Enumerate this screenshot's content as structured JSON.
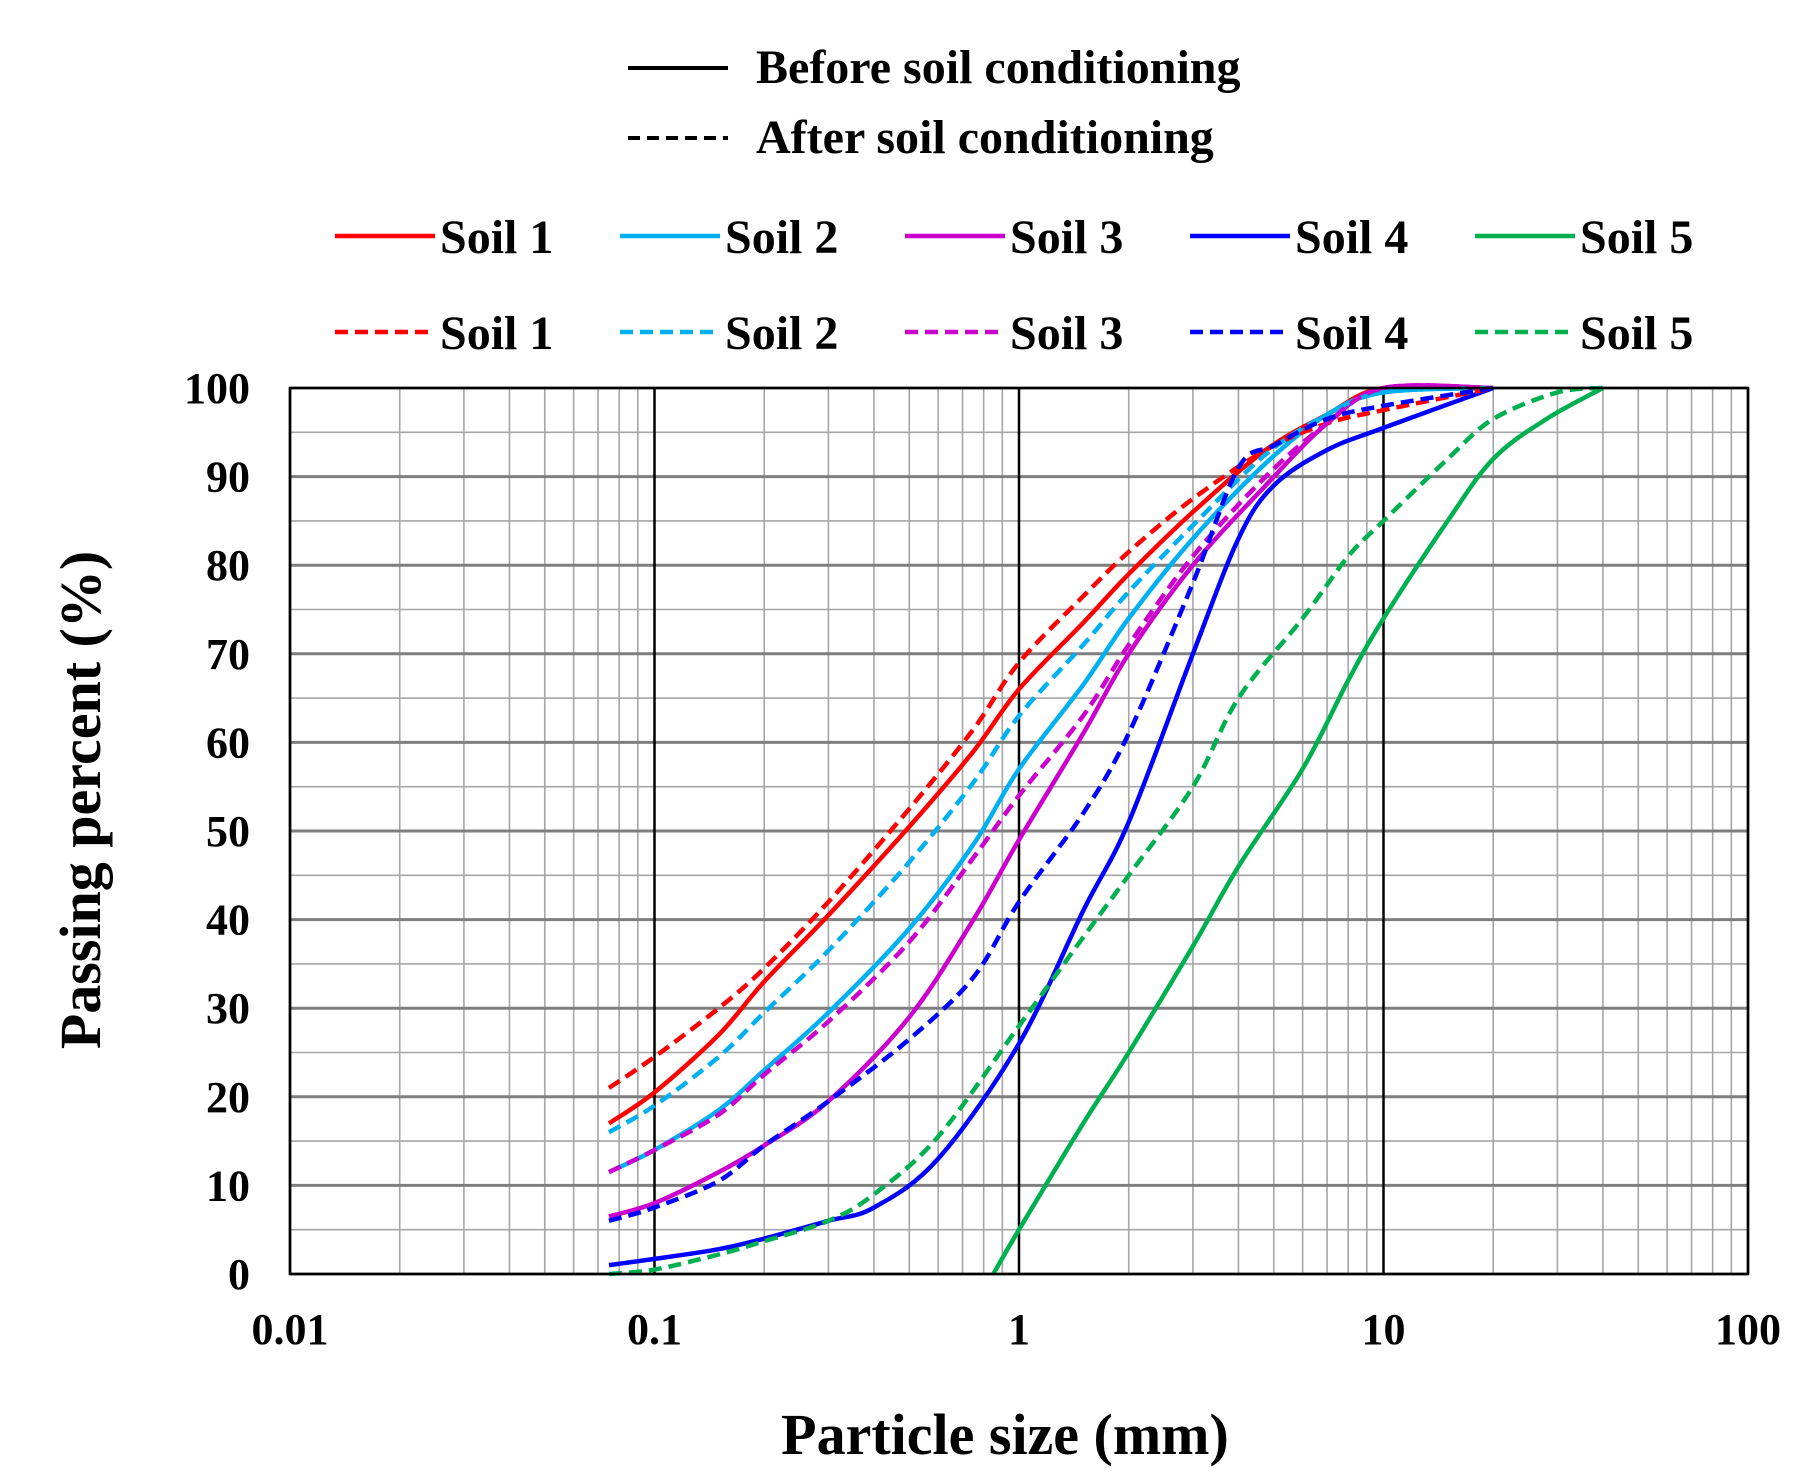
{
  "chart_data": {
    "type": "line",
    "x_scale": "log",
    "xlabel": "Particle size (mm)",
    "ylabel": "Passing  percent (%)",
    "xlim": [
      0.01,
      100
    ],
    "ylim": [
      0,
      100
    ],
    "x_ticks": [
      0.01,
      0.1,
      1,
      10,
      100
    ],
    "x_tick_labels": [
      "0.01",
      "0.1",
      "1",
      "10",
      "100"
    ],
    "y_ticks": [
      0,
      10,
      20,
      30,
      40,
      50,
      60,
      70,
      80,
      90,
      100
    ],
    "y_tick_labels": [
      "0",
      "10",
      "20",
      "30",
      "40",
      "50",
      "60",
      "70",
      "80",
      "90",
      "100"
    ],
    "grid": true,
    "style_legend": [
      {
        "label": "Before soil conditioning",
        "dash": "solid"
      },
      {
        "label": "After soil conditioning",
        "dash": "dashed"
      }
    ],
    "series": [
      {
        "name": "Soil 1",
        "condition": "before",
        "color": "#FF0000",
        "dash": "solid",
        "points": [
          [
            0.075,
            17
          ],
          [
            0.1,
            20.5
          ],
          [
            0.15,
            27
          ],
          [
            0.2,
            33
          ],
          [
            0.3,
            40.5
          ],
          [
            0.5,
            50.5
          ],
          [
            0.75,
            59
          ],
          [
            1,
            66
          ],
          [
            1.5,
            73.5
          ],
          [
            2,
            79
          ],
          [
            3,
            86
          ],
          [
            4.75,
            93
          ],
          [
            7,
            97
          ],
          [
            10,
            100
          ],
          [
            20,
            100
          ]
        ]
      },
      {
        "name": "Soil 2",
        "condition": "before",
        "color": "#00B0F0",
        "dash": "solid",
        "points": [
          [
            0.075,
            11.5
          ],
          [
            0.1,
            14
          ],
          [
            0.15,
            18.5
          ],
          [
            0.2,
            23
          ],
          [
            0.3,
            29.5
          ],
          [
            0.5,
            39
          ],
          [
            0.75,
            48.5
          ],
          [
            1,
            57
          ],
          [
            1.5,
            66.5
          ],
          [
            2,
            74
          ],
          [
            3,
            83
          ],
          [
            4.75,
            91.5
          ],
          [
            7,
            97
          ],
          [
            10,
            99.5
          ],
          [
            20,
            100
          ]
        ]
      },
      {
        "name": "Soil 3",
        "condition": "before",
        "color": "#CC00CC",
        "dash": "solid",
        "points": [
          [
            0.075,
            6.5
          ],
          [
            0.1,
            8
          ],
          [
            0.15,
            11.5
          ],
          [
            0.2,
            14.5
          ],
          [
            0.3,
            19.5
          ],
          [
            0.5,
            29
          ],
          [
            0.75,
            40
          ],
          [
            1,
            49
          ],
          [
            1.5,
            61
          ],
          [
            2,
            70
          ],
          [
            3,
            80
          ],
          [
            4.75,
            89
          ],
          [
            7,
            96
          ],
          [
            10,
            100
          ],
          [
            20,
            100
          ]
        ]
      },
      {
        "name": "Soil 4",
        "condition": "before",
        "color": "#0000FF",
        "dash": "solid",
        "points": [
          [
            0.075,
            1
          ],
          [
            0.1,
            1.7
          ],
          [
            0.15,
            2.8
          ],
          [
            0.2,
            4
          ],
          [
            0.3,
            6
          ],
          [
            0.4,
            7.5
          ],
          [
            0.6,
            13
          ],
          [
            1,
            26
          ],
          [
            1.5,
            41
          ],
          [
            2,
            51
          ],
          [
            3,
            70
          ],
          [
            4,
            83
          ],
          [
            5,
            89
          ],
          [
            7,
            93
          ],
          [
            10,
            95.5
          ],
          [
            20,
            100
          ]
        ]
      },
      {
        "name": "Soil 5",
        "condition": "before",
        "color": "#00B050",
        "dash": "solid",
        "points": [
          [
            0.85,
            0
          ],
          [
            1,
            5
          ],
          [
            1.5,
            17
          ],
          [
            2,
            25
          ],
          [
            3,
            37
          ],
          [
            4,
            46
          ],
          [
            6,
            57
          ],
          [
            8,
            67
          ],
          [
            10,
            74
          ],
          [
            15,
            85
          ],
          [
            20,
            92
          ],
          [
            28,
            96.5
          ],
          [
            40,
            100
          ]
        ]
      },
      {
        "name": "Soil 1",
        "condition": "after",
        "color": "#FF0000",
        "dash": "dashed",
        "points": [
          [
            0.075,
            21
          ],
          [
            0.1,
            24.5
          ],
          [
            0.15,
            30
          ],
          [
            0.2,
            34.5
          ],
          [
            0.3,
            42
          ],
          [
            0.5,
            52.5
          ],
          [
            0.75,
            61.5
          ],
          [
            1,
            69
          ],
          [
            1.5,
            76.5
          ],
          [
            2,
            81.5
          ],
          [
            3,
            87.5
          ],
          [
            4.75,
            93
          ],
          [
            7,
            96
          ],
          [
            10,
            97.5
          ],
          [
            20,
            100
          ]
        ]
      },
      {
        "name": "Soil 2",
        "condition": "after",
        "color": "#00B0F0",
        "dash": "dashed",
        "points": [
          [
            0.075,
            16
          ],
          [
            0.1,
            19
          ],
          [
            0.15,
            24.5
          ],
          [
            0.2,
            29.5
          ],
          [
            0.3,
            36.5
          ],
          [
            0.5,
            46.5
          ],
          [
            0.75,
            55.5
          ],
          [
            1,
            63
          ],
          [
            1.5,
            71
          ],
          [
            2,
            77
          ],
          [
            3,
            84.5
          ],
          [
            4.75,
            92.5
          ],
          [
            7,
            97
          ],
          [
            10,
            99.5
          ],
          [
            20,
            100
          ]
        ]
      },
      {
        "name": "Soil 3",
        "condition": "after",
        "color": "#CC00CC",
        "dash": "dashed",
        "points": [
          [
            0.075,
            11.5
          ],
          [
            0.1,
            14
          ],
          [
            0.15,
            18
          ],
          [
            0.2,
            22.5
          ],
          [
            0.3,
            28.5
          ],
          [
            0.5,
            37.5
          ],
          [
            0.75,
            47
          ],
          [
            1,
            54
          ],
          [
            1.5,
            63
          ],
          [
            2,
            71
          ],
          [
            3,
            81
          ],
          [
            4.75,
            90
          ],
          [
            7,
            96
          ],
          [
            10,
            100
          ],
          [
            20,
            100
          ]
        ]
      },
      {
        "name": "Soil 4",
        "condition": "after",
        "color": "#0000FF",
        "dash": "dashed",
        "points": [
          [
            0.075,
            6
          ],
          [
            0.1,
            7.5
          ],
          [
            0.15,
            10.5
          ],
          [
            0.2,
            14.5
          ],
          [
            0.3,
            19.5
          ],
          [
            0.5,
            26.5
          ],
          [
            0.75,
            33.5
          ],
          [
            1,
            42
          ],
          [
            1.5,
            52
          ],
          [
            2,
            61
          ],
          [
            3,
            78
          ],
          [
            4,
            91
          ],
          [
            5,
            93.5
          ],
          [
            7,
            96.5
          ],
          [
            10,
            98
          ],
          [
            20,
            100
          ]
        ]
      },
      {
        "name": "Soil 5",
        "condition": "after",
        "color": "#00B050",
        "dash": "dashed",
        "points": [
          [
            0.075,
            0
          ],
          [
            0.1,
            0.5
          ],
          [
            0.15,
            2.2
          ],
          [
            0.2,
            3.7
          ],
          [
            0.3,
            6
          ],
          [
            0.4,
            9
          ],
          [
            0.6,
            15.5
          ],
          [
            1,
            28
          ],
          [
            1.5,
            38
          ],
          [
            2,
            45
          ],
          [
            3,
            55
          ],
          [
            4,
            65
          ],
          [
            6,
            74
          ],
          [
            8,
            81
          ],
          [
            10,
            85
          ],
          [
            15,
            92
          ],
          [
            20,
            96.5
          ],
          [
            30,
            99.5
          ],
          [
            40,
            100
          ]
        ]
      }
    ]
  }
}
